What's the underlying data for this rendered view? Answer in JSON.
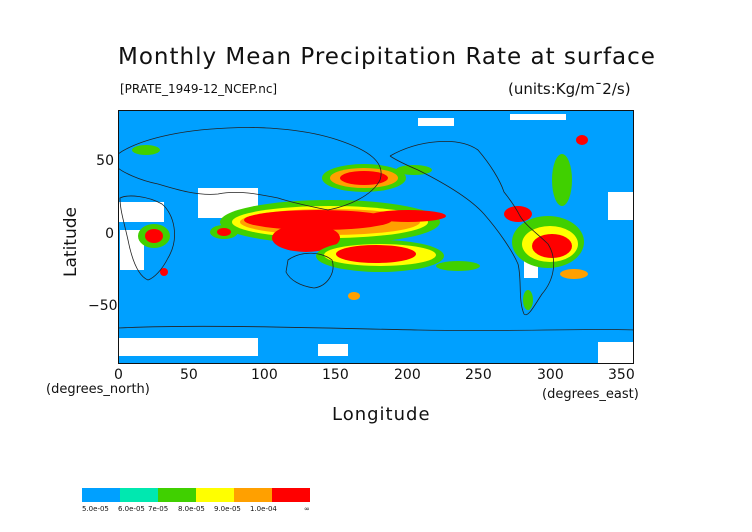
{
  "title": "Monthly Mean Precipitation Rate at surface",
  "file_label": "[PRATE_1949-12_NCEP.nc]",
  "units_label": "(units:Kg/m¯2/s)",
  "axes": {
    "ylabel": "Latitude",
    "xlabel": "Longitude",
    "y_ticks": [
      "50",
      "0",
      "−50"
    ],
    "x_ticks": [
      "0",
      "50",
      "100",
      "150",
      "200",
      "250",
      "300",
      "350"
    ],
    "y_unit": "(degrees_north)",
    "x_unit": "(degrees_east)"
  },
  "colors": {
    "c1": "#00a0ff",
    "c2": "#00e8b0",
    "c3": "#40d000",
    "c4": "#ffff00",
    "c5": "#ffa000",
    "c6": "#ff0000",
    "missing": "#ffffff"
  },
  "legend": {
    "labels": [
      "5.0e-05",
      "6.0e-05",
      "7e-05",
      "8.0e-05",
      "9.0e-05",
      "1.0e-04",
      "∞"
    ]
  }
}
